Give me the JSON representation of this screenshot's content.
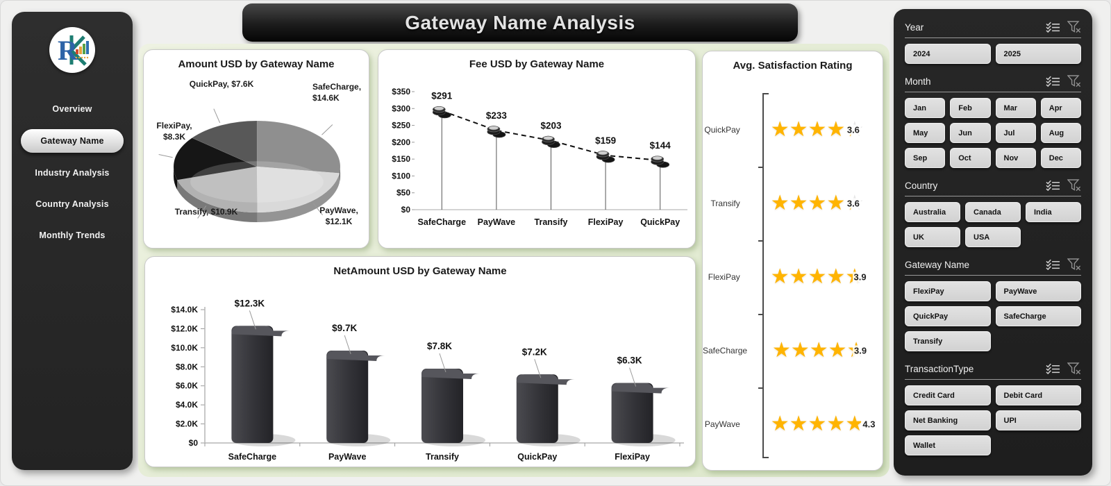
{
  "app": {
    "title": "Gateway Name Analysis"
  },
  "sidebar": {
    "items": [
      {
        "label": "Overview",
        "active": false
      },
      {
        "label": "Gateway Name",
        "active": true
      },
      {
        "label": "Industry Analysis",
        "active": false
      },
      {
        "label": "Country Analysis",
        "active": false
      },
      {
        "label": "Monthly Trends",
        "active": false
      }
    ]
  },
  "colors": {
    "star_gold": "#FFB400",
    "star_empty": "#e7e7e7",
    "bar_fill": "#35353a",
    "panel_dark": "#232323",
    "pie_colors": [
      "#8f8f8f",
      "#d9d9d9",
      "#b2b2b2",
      "#161616",
      "#585858"
    ]
  },
  "chart_data": [
    {
      "id": "amount_pie",
      "type": "pie",
      "title": "Amount USD by Gateway Name",
      "categories": [
        "SafeCharge",
        "PayWave",
        "Transify",
        "FlexiPay",
        "QuickPay"
      ],
      "values": [
        14600,
        12100,
        10900,
        8300,
        7600
      ],
      "value_labels": [
        "$14.6K",
        "$12.1K",
        "$10.9K",
        "$8.3K",
        "$7.6K"
      ],
      "legend_position": "data-labels-around-pie"
    },
    {
      "id": "fee_line",
      "type": "line",
      "title": "Fee USD by Gateway Name",
      "categories": [
        "SafeCharge",
        "PayWave",
        "Transify",
        "FlexiPay",
        "QuickPay"
      ],
      "values": [
        291,
        233,
        203,
        159,
        144
      ],
      "value_labels": [
        "$291",
        "$233",
        "$203",
        "$159",
        "$144"
      ],
      "ylim": [
        0,
        350
      ],
      "yticks": [
        "$0",
        "$50",
        "$100",
        "$150",
        "$200",
        "$250",
        "$300",
        "$350"
      ],
      "line_style": "dashed",
      "marker": "coin-stack-icon",
      "grid": false
    },
    {
      "id": "netamount_bar",
      "type": "bar",
      "title": "NetAmount USD by Gateway Name",
      "categories": [
        "SafeCharge",
        "PayWave",
        "Transify",
        "QuickPay",
        "FlexiPay"
      ],
      "values": [
        12300,
        9700,
        7800,
        7200,
        6300
      ],
      "value_labels": [
        "$12.3K",
        "$9.7K",
        "$7.8K",
        "$7.2K",
        "$6.3K"
      ],
      "ylim": [
        0,
        14000
      ],
      "yticks": [
        "$0",
        "$2.0K",
        "$4.0K",
        "$6.0K",
        "$8.0K",
        "$10.0K",
        "$12.0K",
        "$14.0K"
      ],
      "grid": false
    },
    {
      "id": "satisfaction_rating",
      "type": "rating",
      "title": "Avg. Satisfaction Rating",
      "categories": [
        "QuickPay",
        "Transify",
        "FlexiPay",
        "SafeCharge",
        "PayWave"
      ],
      "values": [
        3.6,
        3.6,
        3.9,
        3.9,
        4.3
      ],
      "max": 5
    }
  ],
  "filters": {
    "header_icons": [
      "multi-select-icon",
      "clear-filter-icon"
    ],
    "sections": [
      {
        "title": "Year",
        "columns": 2,
        "options": [
          "2024",
          "2025"
        ]
      },
      {
        "title": "Month",
        "columns": 4,
        "options": [
          "Jan",
          "Feb",
          "Mar",
          "Apr",
          "May",
          "Jun",
          "Jul",
          "Aug",
          "Sep",
          "Oct",
          "Nov",
          "Dec"
        ]
      },
      {
        "title": "Country",
        "columns": 3,
        "options": [
          "Australia",
          "Canada",
          "India",
          "UK",
          "USA"
        ]
      },
      {
        "title": "Gateway Name",
        "columns": 2,
        "options": [
          "FlexiPay",
          "PayWave",
          "QuickPay",
          "SafeCharge",
          "Transify"
        ]
      },
      {
        "title": "TransactionType",
        "columns": 2,
        "options": [
          "Credit Card",
          "Debit Card",
          "Net Banking",
          "UPI",
          "Wallet"
        ]
      }
    ]
  }
}
